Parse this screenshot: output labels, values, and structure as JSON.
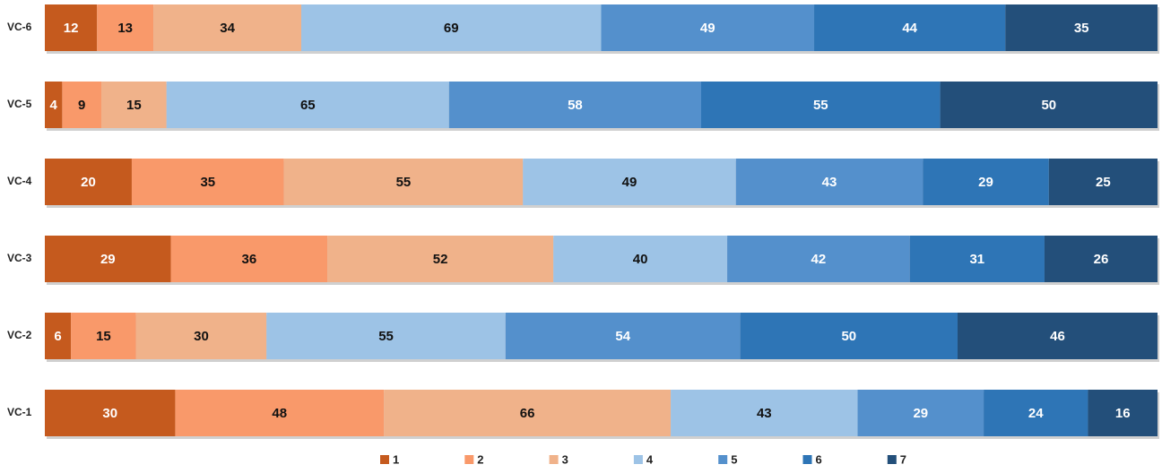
{
  "chart_data": {
    "type": "stacked-bar-horizontal",
    "categories": [
      "VC-1",
      "VC-2",
      "VC-3",
      "VC-4",
      "VC-5",
      "VC-6"
    ],
    "series": [
      {
        "name": "1",
        "color": "#c55a1e",
        "values": [
          30,
          6,
          29,
          20,
          4,
          12
        ]
      },
      {
        "name": "2",
        "color": "#f9996a",
        "values": [
          48,
          15,
          36,
          35,
          9,
          13
        ]
      },
      {
        "name": "3",
        "color": "#f0b28a",
        "values": [
          66,
          30,
          52,
          55,
          15,
          34
        ]
      },
      {
        "name": "4",
        "color": "#9dc3e6",
        "values": [
          43,
          55,
          40,
          49,
          65,
          69
        ]
      },
      {
        "name": "5",
        "color": "#5490cc",
        "values": [
          29,
          54,
          42,
          43,
          58,
          49
        ]
      },
      {
        "name": "6",
        "color": "#2e75b6",
        "values": [
          24,
          50,
          31,
          29,
          55,
          44
        ]
      },
      {
        "name": "7",
        "color": "#234f7a",
        "values": [
          16,
          46,
          26,
          25,
          50,
          35
        ]
      }
    ],
    "legend": "bottom"
  }
}
